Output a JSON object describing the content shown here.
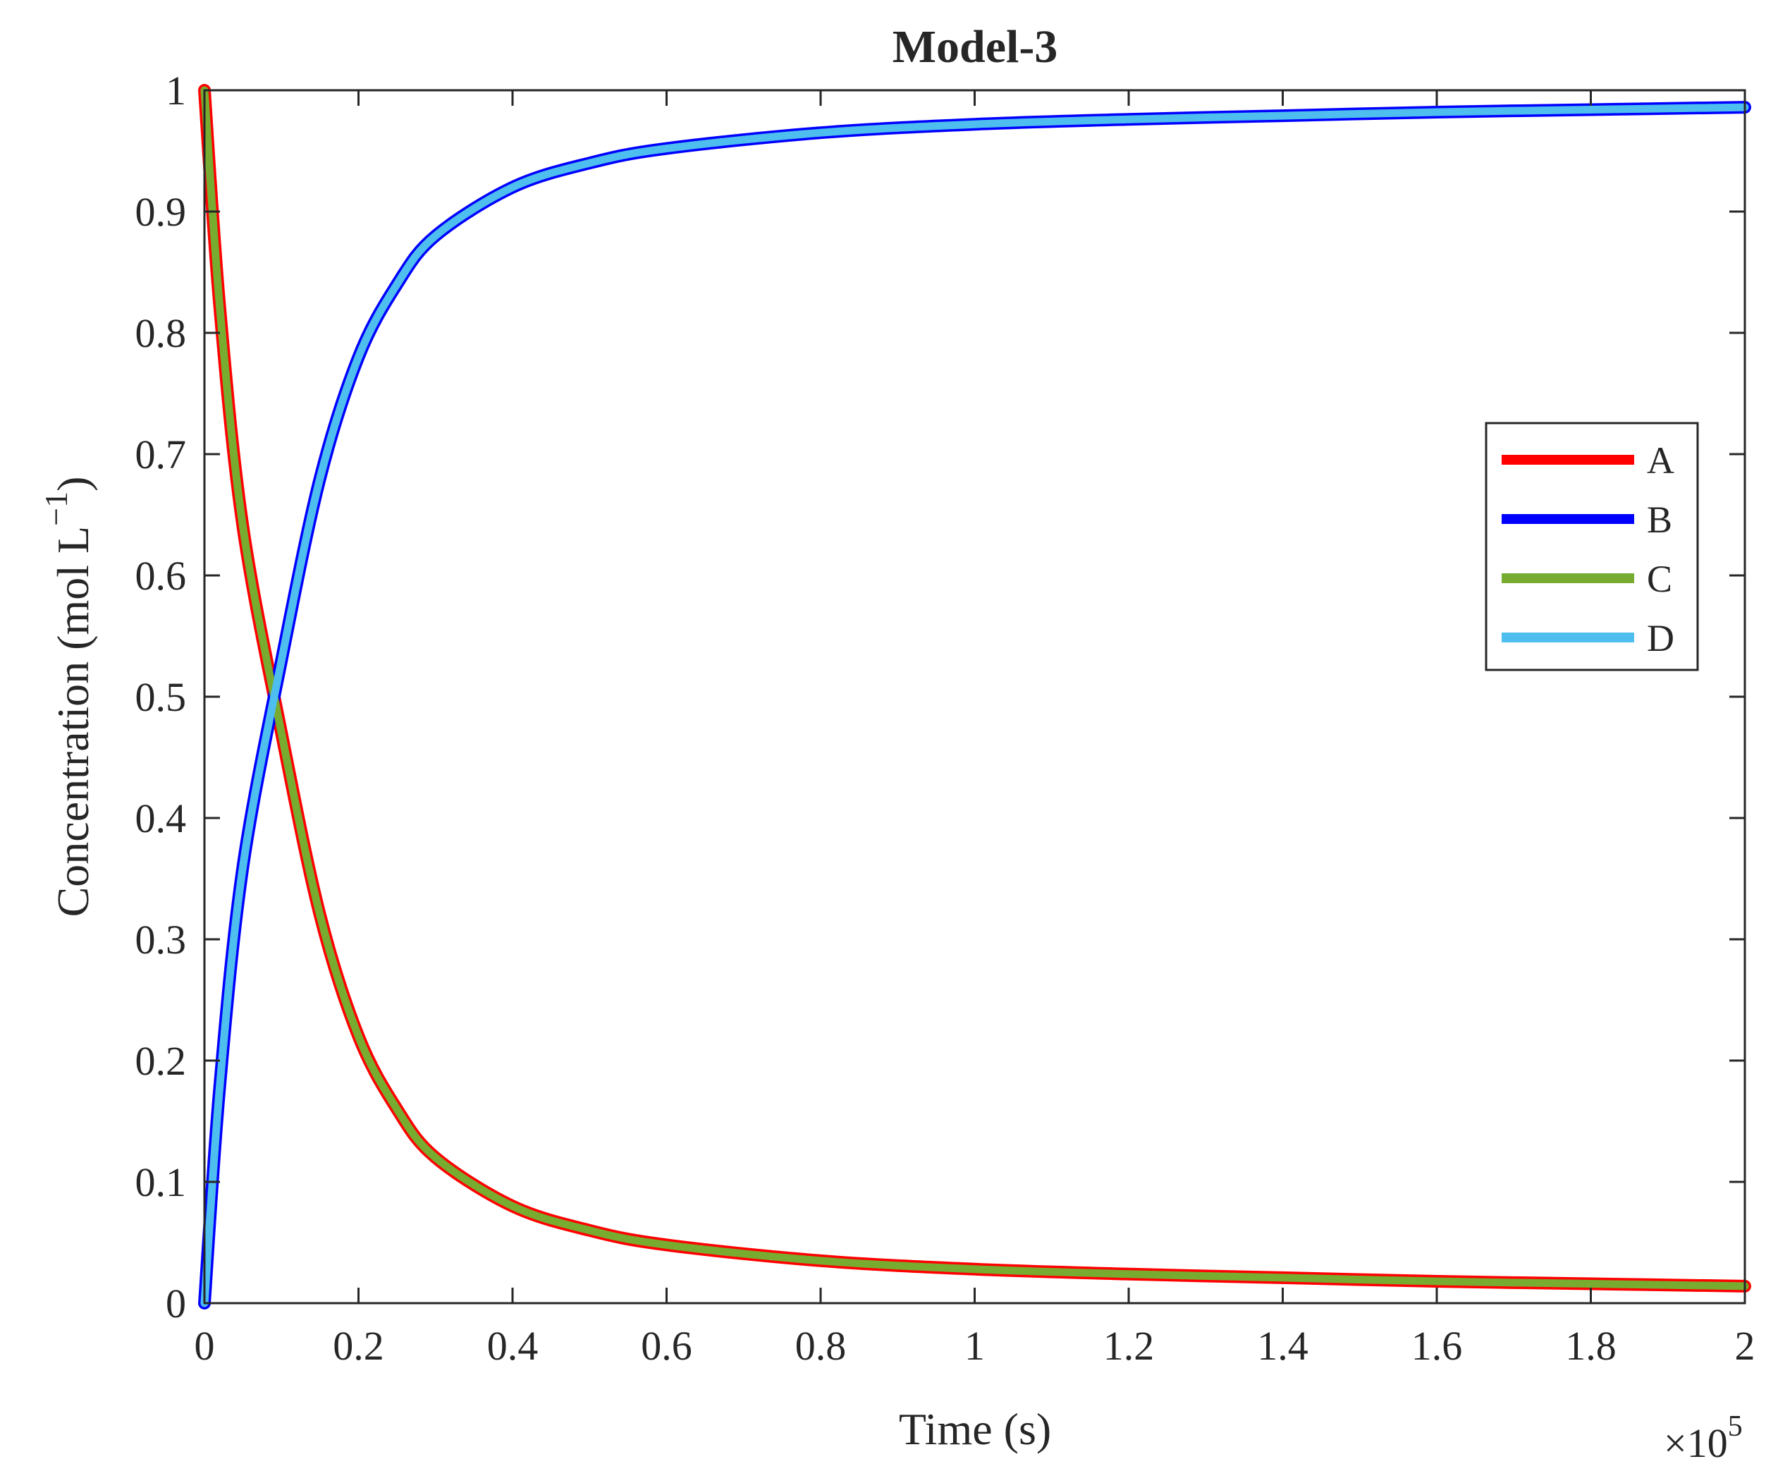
{
  "chart_data": {
    "type": "line",
    "title": "Model-3",
    "xlabel": "Time (s)",
    "ylabel": "Concentration (mol L",
    "ylabel_superscript": "−1",
    "ylabel_close": ")",
    "x_multiplier": "×10",
    "x_multiplier_exponent": "5",
    "xlim": [
      0,
      2
    ],
    "ylim": [
      0,
      1
    ],
    "x_ticks": [
      "0",
      "0.2",
      "0.4",
      "0.6",
      "0.8",
      "1",
      "1.2",
      "1.4",
      "1.6",
      "1.8",
      "2"
    ],
    "y_ticks": [
      "0",
      "0.1",
      "0.2",
      "0.3",
      "0.4",
      "0.5",
      "0.6",
      "0.7",
      "0.8",
      "0.9",
      "1"
    ],
    "grid": false,
    "legend_position": "right-upper-middle",
    "x": [
      0,
      0.02,
      0.05,
      0.1,
      0.15,
      0.2,
      0.25,
      0.3,
      0.4,
      0.5,
      0.6,
      0.8,
      1.0,
      1.2,
      1.4,
      1.6,
      1.8,
      2.0
    ],
    "series": [
      {
        "name": "A",
        "color": "#ff0000",
        "values": [
          1.0,
          0.82,
          0.64,
          0.47,
          0.32,
          0.22,
          0.16,
          0.12,
          0.08,
          0.06,
          0.048,
          0.035,
          0.028,
          0.024,
          0.021,
          0.018,
          0.016,
          0.014
        ]
      },
      {
        "name": "B",
        "color": "#0000ff",
        "values": [
          0.0,
          0.18,
          0.36,
          0.53,
          0.68,
          0.78,
          0.84,
          0.88,
          0.92,
          0.94,
          0.952,
          0.965,
          0.972,
          0.976,
          0.979,
          0.982,
          0.984,
          0.986
        ]
      },
      {
        "name": "C",
        "color": "#77ac30",
        "values": [
          1.0,
          0.82,
          0.64,
          0.47,
          0.32,
          0.22,
          0.16,
          0.12,
          0.08,
          0.06,
          0.048,
          0.035,
          0.028,
          0.024,
          0.021,
          0.018,
          0.016,
          0.014
        ]
      },
      {
        "name": "D",
        "color": "#4dbeee",
        "values": [
          0.0,
          0.18,
          0.36,
          0.53,
          0.68,
          0.78,
          0.84,
          0.88,
          0.92,
          0.94,
          0.952,
          0.965,
          0.972,
          0.976,
          0.979,
          0.982,
          0.984,
          0.986
        ]
      }
    ]
  }
}
